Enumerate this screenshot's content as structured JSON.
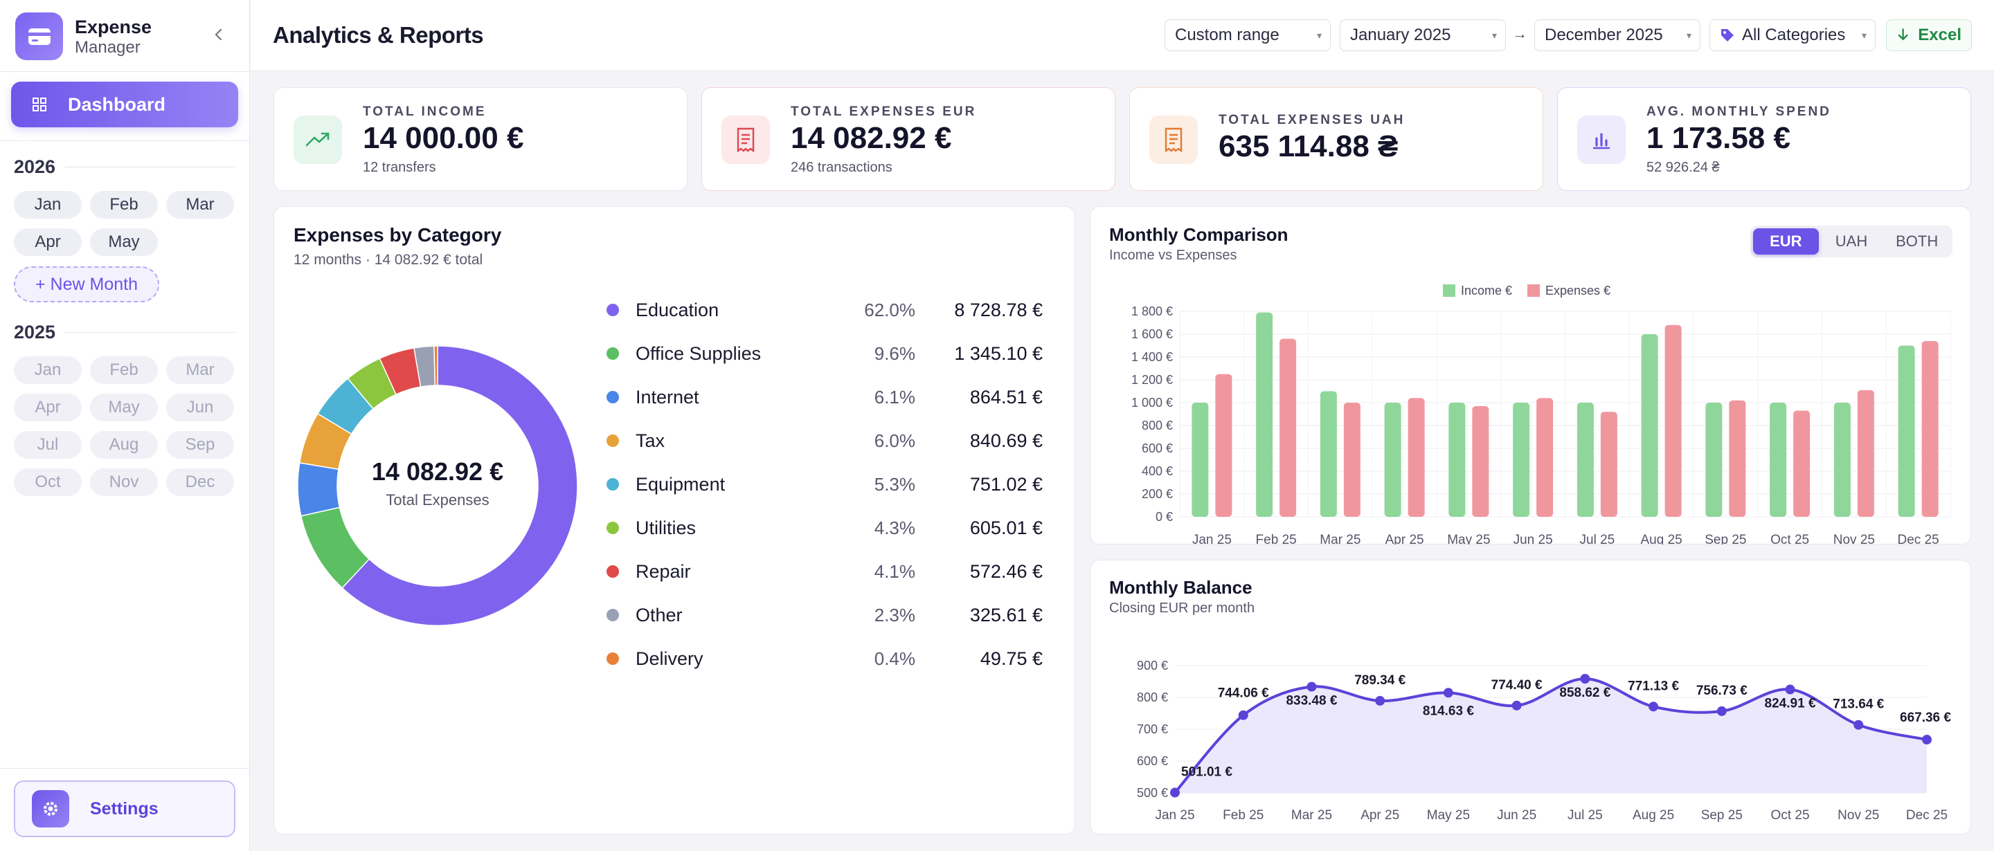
{
  "sidebar": {
    "brand_title": "Expense",
    "brand_sub": "Manager",
    "dashboard_label": "Dashboard",
    "years": [
      {
        "year": "2026",
        "months": [
          "Jan",
          "Feb",
          "Mar",
          "Apr",
          "May"
        ]
      },
      {
        "year": "2025",
        "months": [
          "Jan",
          "Feb",
          "Mar",
          "Apr",
          "May",
          "Jun",
          "Jul",
          "Aug",
          "Sep",
          "Oct",
          "Nov",
          "Dec"
        ]
      }
    ],
    "new_month_label": "+ New Month",
    "settings_label": "Settings"
  },
  "header": {
    "title": "Analytics & Reports",
    "range_select": "Custom range",
    "from_select": "January 2025",
    "to_select": "December 2025",
    "category_select": "All Categories",
    "excel_label": "Excel"
  },
  "kpis": [
    {
      "label": "TOTAL INCOME",
      "value": "14 000.00 €",
      "sub": "12 transfers",
      "color": "#2fa865"
    },
    {
      "label": "TOTAL EXPENSES EUR",
      "value": "14 082.92 €",
      "sub": "246 transactions",
      "color": "#e0464f"
    },
    {
      "label": "TOTAL EXPENSES UAH",
      "value": "635 114.88 ₴",
      "sub": "",
      "color": "#e6782e"
    },
    {
      "label": "AVG. MONTHLY SPEND",
      "value": "1 173.58 €",
      "sub": "52 926.24 ₴",
      "color": "#6a53e6"
    }
  ],
  "category_panel": {
    "title": "Expenses by Category",
    "subtitle": "12 months · 14 082.92 € total",
    "center_value": "14 082.92 €",
    "center_label": "Total Expenses",
    "categories": [
      {
        "name": "Education",
        "pct": "62.0%",
        "amount": "8 728.78 €",
        "color": "#7f63ee",
        "share": 62.0
      },
      {
        "name": "Office Supplies",
        "pct": "9.6%",
        "amount": "1 345.10 €",
        "color": "#5cbf62",
        "share": 9.6
      },
      {
        "name": "Internet",
        "pct": "6.1%",
        "amount": "864.51 €",
        "color": "#4a86e8",
        "share": 6.1
      },
      {
        "name": "Tax",
        "pct": "6.0%",
        "amount": "840.69 €",
        "color": "#e8a23a",
        "share": 6.0
      },
      {
        "name": "Equipment",
        "pct": "5.3%",
        "amount": "751.02 €",
        "color": "#4cb3d4",
        "share": 5.3
      },
      {
        "name": "Utilities",
        "pct": "4.3%",
        "amount": "605.01 €",
        "color": "#8cc63f",
        "share": 4.3
      },
      {
        "name": "Repair",
        "pct": "4.1%",
        "amount": "572.46 €",
        "color": "#e04a4a",
        "share": 4.1
      },
      {
        "name": "Other",
        "pct": "2.3%",
        "amount": "325.61 €",
        "color": "#9aa0b4",
        "share": 2.3
      },
      {
        "name": "Delivery",
        "pct": "0.4%",
        "amount": "49.75 €",
        "color": "#e8803a",
        "share": 0.4
      }
    ]
  },
  "comparison_panel": {
    "title": "Monthly Comparison",
    "subtitle": "Income vs Expenses",
    "toggle": [
      "EUR",
      "UAH",
      "BOTH"
    ],
    "toggle_active": "EUR"
  },
  "balance_panel": {
    "title": "Monthly Balance",
    "subtitle": "Closing EUR per month"
  },
  "chart_data": [
    {
      "type": "bar",
      "title": "Monthly Comparison",
      "categories": [
        "Jan 25",
        "Feb 25",
        "Mar 25",
        "Apr 25",
        "May 25",
        "Jun 25",
        "Jul 25",
        "Aug 25",
        "Sep 25",
        "Oct 25",
        "Nov 25",
        "Dec 25"
      ],
      "series": [
        {
          "name": "Income €",
          "color": "#8fd69a",
          "values": [
            1000,
            1790,
            1100,
            1000,
            1000,
            1000,
            1000,
            1600,
            1000,
            1000,
            1000,
            1500
          ]
        },
        {
          "name": "Expenses €",
          "color": "#f0979e",
          "values": [
            1250,
            1560,
            1000,
            1040,
            970,
            1040,
            920,
            1680,
            1020,
            930,
            1110,
            1540
          ]
        }
      ],
      "yticks": [
        "0 €",
        "200 €",
        "400 €",
        "600 €",
        "800 €",
        "1 000 €",
        "1 200 €",
        "1 400 €",
        "1 600 €",
        "1 800 €"
      ],
      "ylim": [
        0,
        1800
      ],
      "legend": "top",
      "grid": true
    },
    {
      "type": "area",
      "title": "Monthly Balance",
      "categories": [
        "Jan 25",
        "Feb 25",
        "Mar 25",
        "Apr 25",
        "May 25",
        "Jun 25",
        "Jul 25",
        "Aug 25",
        "Sep 25",
        "Oct 25",
        "Nov 25",
        "Dec 25"
      ],
      "values": [
        501.01,
        744.06,
        833.48,
        789.34,
        814.63,
        774.4,
        858.62,
        771.13,
        756.73,
        824.91,
        713.64,
        667.36
      ],
      "labels": [
        "501.01 €",
        "744.06 €",
        "833.48 €",
        "789.34 €",
        "814.63 €",
        "774.40 €",
        "858.62 €",
        "771.13 €",
        "756.73 €",
        "824.91 €",
        "713.64 €",
        "667.36 €"
      ],
      "yticks": [
        "500 €",
        "600 €",
        "700 €",
        "800 €",
        "900 €"
      ],
      "ylim": [
        500,
        900
      ],
      "color": "#5a44d8",
      "grid": true
    }
  ]
}
